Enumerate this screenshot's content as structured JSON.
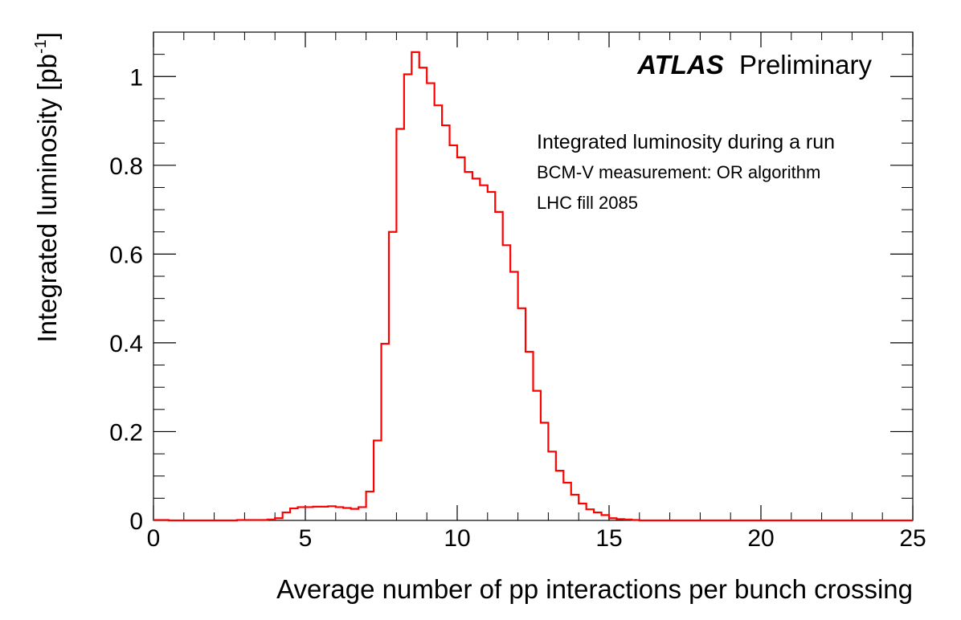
{
  "chart_data": {
    "type": "histogram",
    "title_bold": "ATLAS",
    "title_rest": "Preliminary",
    "annotations": [
      "Integrated luminosity during a run",
      "BCM-V measurement: OR algorithm",
      "LHC fill 2085"
    ],
    "xlabel": "Average number of pp interactions per bunch crossing",
    "ylabel": "Integrated luminosity [pb",
    "ylabel_sup": "-1",
    "ylabel_end": "]",
    "xlim": [
      0,
      25
    ],
    "ylim": [
      0,
      1.1
    ],
    "xticks": [
      0,
      5,
      10,
      15,
      20,
      25
    ],
    "xtick_labels": [
      "0",
      "5",
      "10",
      "15",
      "20",
      "25"
    ],
    "yticks": [
      0,
      0.2,
      0.4,
      0.6,
      0.8,
      1
    ],
    "ytick_labels": [
      "0",
      "0.2",
      "0.4",
      "0.6",
      "0.8",
      "1"
    ],
    "bin_width": 0.25,
    "color": "#ff0000",
    "x": [
      0,
      0.25,
      0.5,
      0.75,
      1,
      1.25,
      1.5,
      1.75,
      2,
      2.25,
      2.5,
      2.75,
      3,
      3.25,
      3.5,
      3.75,
      4,
      4.25,
      4.5,
      4.75,
      5,
      5.25,
      5.5,
      5.75,
      6,
      6.25,
      6.5,
      6.75,
      7,
      7.25,
      7.5,
      7.75,
      8,
      8.25,
      8.5,
      8.75,
      9,
      9.25,
      9.5,
      9.75,
      10,
      10.25,
      10.5,
      10.75,
      11,
      11.25,
      11.5,
      11.75,
      12,
      12.25,
      12.5,
      12.75,
      13,
      13.25,
      13.5,
      13.75,
      14,
      14.25,
      14.5,
      14.75,
      15,
      15.25,
      15.5,
      15.75,
      16,
      16.25,
      16.5,
      16.75,
      17,
      17.25,
      17.5,
      17.75,
      18,
      18.25,
      18.5,
      18.75,
      19,
      19.25,
      19.5,
      19.75,
      20,
      20.25,
      20.5,
      20.75,
      21,
      21.25,
      21.5,
      21.75,
      22,
      22.25,
      22.5,
      22.75,
      23,
      23.25,
      23.5,
      23.75,
      24,
      24.25,
      24.5,
      24.75
    ],
    "values": [
      0.001,
      0.001,
      0,
      0,
      0,
      0,
      0,
      0,
      0,
      0,
      0,
      0.001,
      0.001,
      0.001,
      0.001,
      0.002,
      0.005,
      0.018,
      0.027,
      0.03,
      0.03,
      0.031,
      0.031,
      0.032,
      0.03,
      0.028,
      0.026,
      0.03,
      0.065,
      0.18,
      0.398,
      0.65,
      0.882,
      1.005,
      1.055,
      1.02,
      0.985,
      0.935,
      0.89,
      0.845,
      0.818,
      0.785,
      0.77,
      0.755,
      0.74,
      0.695,
      0.62,
      0.56,
      0.478,
      0.38,
      0.292,
      0.22,
      0.155,
      0.112,
      0.085,
      0.058,
      0.038,
      0.025,
      0.018,
      0.012,
      0.005,
      0.003,
      0.002,
      0.001,
      0,
      0,
      0,
      0,
      0,
      0,
      0,
      0,
      0,
      0,
      0,
      0,
      0,
      0,
      0,
      0,
      0,
      0,
      0,
      0,
      0,
      0,
      0,
      0,
      0,
      0,
      0,
      0,
      0,
      0,
      0,
      0,
      0,
      0,
      0,
      0
    ]
  }
}
